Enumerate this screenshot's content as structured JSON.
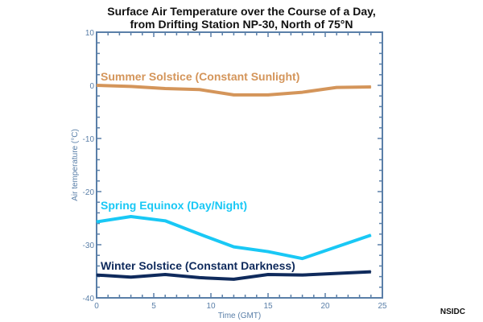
{
  "chart_data": {
    "type": "line",
    "title_line1": "Surface Air Temperature over the Course of a Day,",
    "title_line2": "from Drifting Station NP-30, North of 75°N",
    "xlabel": "Time (GMT)",
    "ylabel": "Air temperature (°C)",
    "xlim": [
      0,
      25
    ],
    "ylim": [
      -40,
      10
    ],
    "xticks": [
      "0",
      "5",
      "10",
      "15",
      "20",
      "25"
    ],
    "yticks": [
      "10",
      "0",
      "-10",
      "-20",
      "-30",
      "-40"
    ],
    "x": [
      0,
      3,
      6,
      9,
      12,
      15,
      18,
      21,
      24
    ],
    "series": [
      {
        "name": "Summer Solstice (Constant Sunlight)",
        "color": "#d4955a",
        "values": [
          0,
          -0.2,
          -0.6,
          -0.8,
          -1.8,
          -1.8,
          -1.3,
          -0.4,
          -0.3
        ]
      },
      {
        "name": "Spring Equinox (Day/Night)",
        "color": "#19c8f5",
        "values": [
          -25.7,
          -24.7,
          -25.5,
          -28.0,
          -30.4,
          -31.3,
          -32.6,
          -30.4,
          -28.2
        ]
      },
      {
        "name": "Winter Solstice (Constant Darkness)",
        "color": "#0f2a5c",
        "values": [
          -35.7,
          -36.1,
          -35.6,
          -36.2,
          -36.5,
          -35.6,
          -35.7,
          -35.4,
          -35.1
        ]
      }
    ],
    "axis_color": "#5a7fa8",
    "grid": false
  },
  "credit": "NSIDC"
}
